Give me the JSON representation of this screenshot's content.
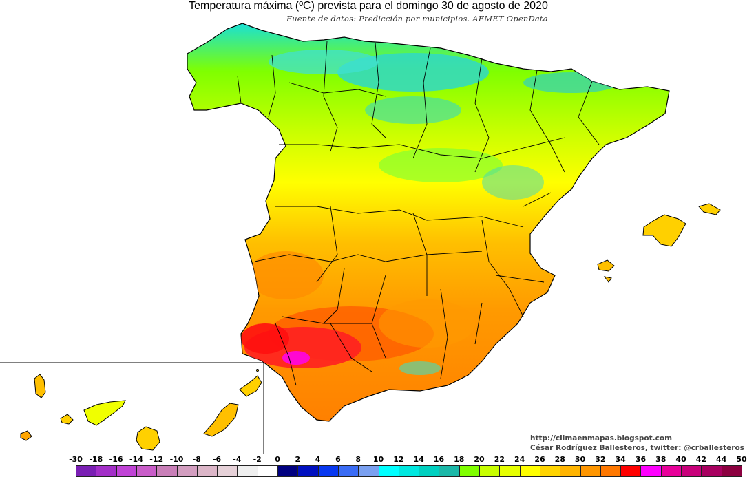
{
  "title": "Temperatura máxima (ºC) prevista para el domingo 30 de agosto de 2020",
  "subtitle": "Fuente de datos: Predicción por municipios. AEMET OpenData",
  "credits": {
    "blog": "http://climaenmapas.blogspot.com",
    "author": "César Rodríguez Ballesteros, twitter: @crballesteros"
  },
  "legend": {
    "labels": [
      "-30",
      "-18",
      "-16",
      "-14",
      "-12",
      "-10",
      "-8",
      "-6",
      "-4",
      "-2",
      "0",
      "2",
      "4",
      "6",
      "8",
      "10",
      "12",
      "14",
      "16",
      "18",
      "20",
      "22",
      "24",
      "26",
      "28",
      "30",
      "32",
      "34",
      "36",
      "38",
      "40",
      "42",
      "44",
      "50"
    ],
    "colors": [
      "#7a1fb4",
      "#a32fc8",
      "#c043d6",
      "#c95dc9",
      "#c97fb8",
      "#d39ec0",
      "#dcb6c8",
      "#e6d1d8",
      "#efefef",
      "#ffffff",
      "#000080",
      "#0010c0",
      "#0838f0",
      "#3a6cf5",
      "#7aa0f0",
      "#00ffff",
      "#00e8e0",
      "#00d0c0",
      "#1bb8a8",
      "#80ff00",
      "#c8ff00",
      "#e6ff00",
      "#ffff00",
      "#ffd400",
      "#ffb400",
      "#ff9600",
      "#ff7800",
      "#ff0000",
      "#ff00ff",
      "#e8009a",
      "#c8007a",
      "#a80060",
      "#8c0040"
    ]
  },
  "colors": {
    "hot": "#ff1414",
    "very_hot": "#ff2b2b",
    "orange": "#ff8c00",
    "orange_light": "#ffa500",
    "yellow": "#ffff00",
    "yellow_green": "#d6ff00",
    "green": "#7fff00",
    "cyan": "#2fd8c8",
    "magenta": "#ff00ff",
    "border": "#000000"
  }
}
